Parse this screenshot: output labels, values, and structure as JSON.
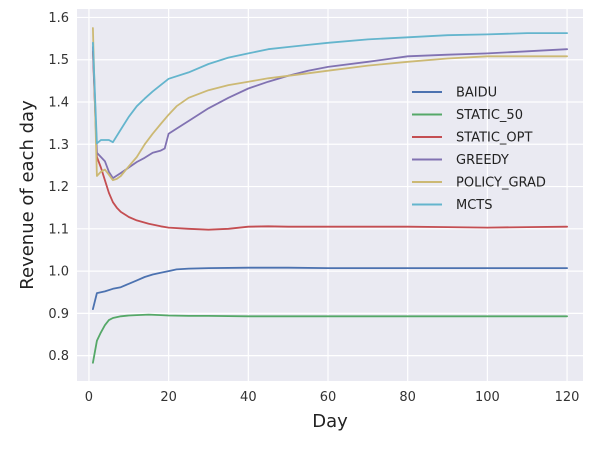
{
  "chart_data": {
    "type": "line",
    "title": "",
    "xlabel": "Day",
    "ylabel": "Revenue of each day",
    "xlim": [
      -3,
      124
    ],
    "ylim": [
      0.74,
      1.62
    ],
    "xticks": [
      0,
      20,
      40,
      60,
      80,
      100,
      120
    ],
    "yticks": [
      0.8,
      0.9,
      1.0,
      1.1,
      1.2,
      1.3,
      1.4,
      1.5,
      1.6
    ],
    "xtick_labels": [
      "0",
      "20",
      "40",
      "60",
      "80",
      "100",
      "120"
    ],
    "ytick_labels": [
      "0.8",
      "0.9",
      "1.0",
      "1.1",
      "1.2",
      "1.3",
      "1.4",
      "1.5",
      "1.6"
    ],
    "grid": true,
    "legend_position": "center-right",
    "series": [
      {
        "name": "BAIDU",
        "color": "#4c72b0",
        "x": [
          1,
          2,
          4,
          6,
          8,
          10,
          12,
          14,
          16,
          18,
          20,
          22,
          25,
          30,
          40,
          50,
          60,
          70,
          80,
          90,
          100,
          110,
          120
        ],
        "y": [
          0.91,
          0.948,
          0.952,
          0.958,
          0.962,
          0.97,
          0.978,
          0.986,
          0.992,
          0.996,
          1.0,
          1.004,
          1.006,
          1.007,
          1.008,
          1.008,
          1.007,
          1.007,
          1.007,
          1.007,
          1.007,
          1.007,
          1.007
        ]
      },
      {
        "name": "STATIC_50",
        "color": "#55a868",
        "x": [
          1,
          2,
          3,
          4,
          5,
          6,
          8,
          10,
          12,
          15,
          18,
          20,
          25,
          30,
          40,
          60,
          80,
          100,
          120
        ],
        "y": [
          0.783,
          0.835,
          0.855,
          0.872,
          0.884,
          0.889,
          0.893,
          0.895,
          0.896,
          0.897,
          0.896,
          0.895,
          0.894,
          0.894,
          0.893,
          0.893,
          0.893,
          0.893,
          0.893
        ]
      },
      {
        "name": "STATIC_OPT",
        "color": "#c44e52",
        "x": [
          1,
          2,
          3,
          4,
          5,
          6,
          7,
          8,
          10,
          12,
          15,
          18,
          20,
          25,
          30,
          35,
          40,
          45,
          50,
          60,
          70,
          80,
          90,
          100,
          110,
          120
        ],
        "y": [
          1.52,
          1.27,
          1.245,
          1.215,
          1.185,
          1.163,
          1.15,
          1.14,
          1.128,
          1.12,
          1.112,
          1.106,
          1.103,
          1.1,
          1.098,
          1.1,
          1.105,
          1.106,
          1.105,
          1.105,
          1.105,
          1.105,
          1.104,
          1.103,
          1.104,
          1.105
        ]
      },
      {
        "name": "GREEDY",
        "color": "#8172b2",
        "x": [
          1,
          2,
          3,
          4,
          5,
          6,
          8,
          10,
          12,
          14,
          16,
          18,
          19,
          20,
          22,
          25,
          30,
          35,
          40,
          45,
          50,
          55,
          60,
          70,
          80,
          90,
          100,
          110,
          120
        ],
        "y": [
          1.53,
          1.28,
          1.27,
          1.26,
          1.235,
          1.22,
          1.232,
          1.245,
          1.258,
          1.268,
          1.28,
          1.285,
          1.29,
          1.325,
          1.337,
          1.355,
          1.385,
          1.41,
          1.432,
          1.448,
          1.462,
          1.474,
          1.483,
          1.495,
          1.508,
          1.512,
          1.515,
          1.52,
          1.525
        ]
      },
      {
        "name": "POLICY_GRAD",
        "color": "#ccb974",
        "x": [
          1,
          2,
          3,
          4,
          5,
          6,
          7,
          8,
          10,
          12,
          14,
          16,
          18,
          20,
          22,
          25,
          30,
          35,
          40,
          45,
          50,
          55,
          60,
          70,
          80,
          90,
          100,
          110,
          120
        ],
        "y": [
          1.575,
          1.225,
          1.235,
          1.24,
          1.228,
          1.215,
          1.218,
          1.225,
          1.248,
          1.27,
          1.3,
          1.325,
          1.348,
          1.37,
          1.39,
          1.41,
          1.428,
          1.44,
          1.448,
          1.456,
          1.462,
          1.468,
          1.474,
          1.486,
          1.495,
          1.503,
          1.508,
          1.508,
          1.508
        ]
      },
      {
        "name": "MCTS",
        "color": "#64b5cd",
        "x": [
          1,
          2,
          3,
          4,
          5,
          6,
          8,
          10,
          12,
          14,
          16,
          18,
          20,
          25,
          30,
          35,
          40,
          45,
          50,
          55,
          60,
          70,
          80,
          90,
          100,
          110,
          120
        ],
        "y": [
          1.54,
          1.302,
          1.31,
          1.31,
          1.31,
          1.305,
          1.335,
          1.365,
          1.39,
          1.408,
          1.425,
          1.44,
          1.455,
          1.47,
          1.49,
          1.505,
          1.515,
          1.525,
          1.53,
          1.535,
          1.54,
          1.548,
          1.553,
          1.558,
          1.56,
          1.563,
          1.563
        ]
      }
    ]
  }
}
